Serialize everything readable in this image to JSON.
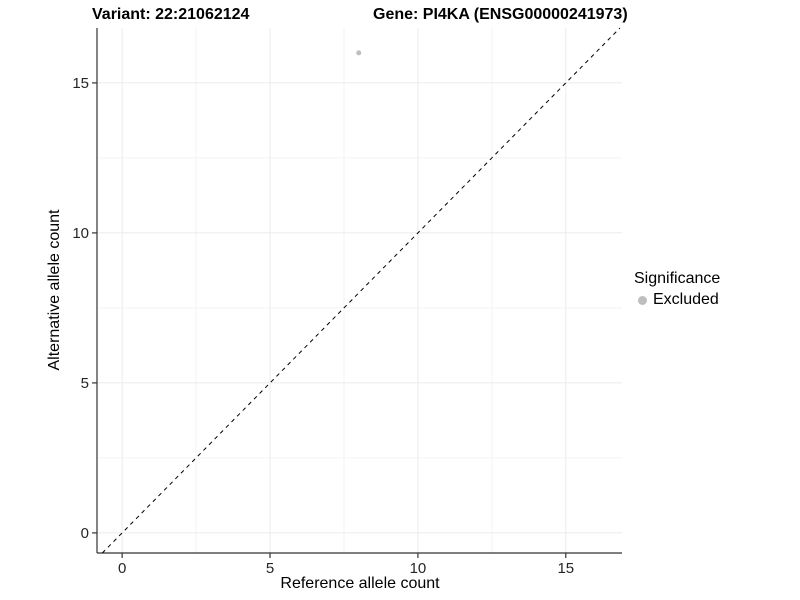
{
  "header": {
    "variant_title": "Variant: 22:21062124",
    "gene_title": "Gene: PI4KA (ENSG00000241973)"
  },
  "chart_data": {
    "type": "scatter",
    "xlabel": "Reference allele count",
    "ylabel": "Alternative allele count",
    "xlim": [
      -0.85,
      16.9
    ],
    "ylim": [
      -0.67,
      16.83
    ],
    "x_major_ticks": [
      0,
      5,
      10,
      15
    ],
    "y_major_ticks": [
      0,
      5,
      10,
      15
    ],
    "x_minor_ticks": [
      2.5,
      7.5,
      12.5
    ],
    "y_minor_ticks": [
      2.5,
      7.5,
      12.5
    ],
    "grid": true,
    "points": [
      {
        "x": 8,
        "y": 16,
        "series": "Excluded"
      }
    ],
    "identity_line": {
      "style": "dashed",
      "slope": 1,
      "intercept": 0,
      "color": "#000000"
    },
    "series": [
      {
        "name": "Excluded",
        "color": "#bebebe"
      }
    ],
    "legend": {
      "title": "Significance",
      "position": "right",
      "entries": [
        {
          "label": "Excluded",
          "color": "#bebebe"
        }
      ]
    },
    "colors": {
      "background": "#ffffff",
      "grid_major": "#ebebeb",
      "grid_minor": "#f3f3f3",
      "axis_line": "#333333",
      "tick_label": "#262626"
    }
  }
}
